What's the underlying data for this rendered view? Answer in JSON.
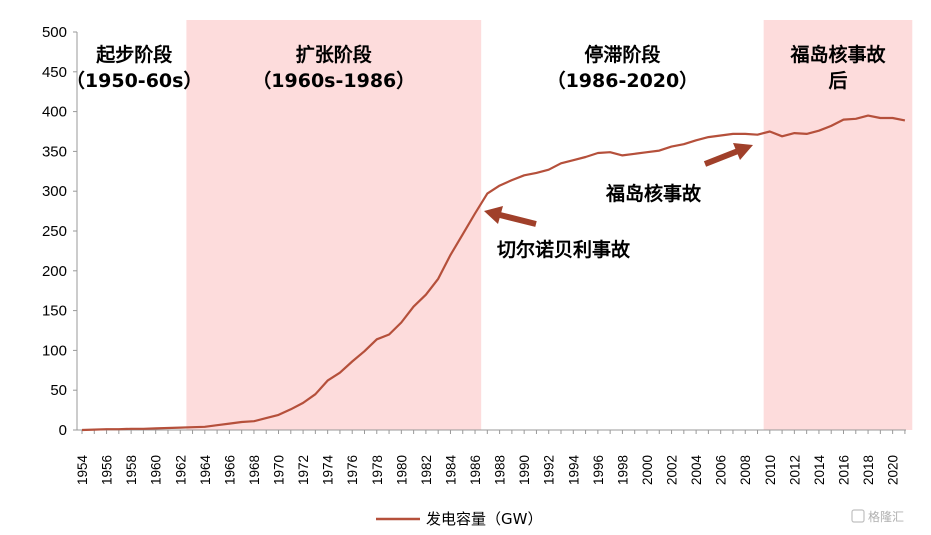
{
  "chart_data": {
    "type": "line",
    "ylim": [
      0,
      500
    ],
    "yticks": [
      0,
      50,
      100,
      150,
      200,
      250,
      300,
      350,
      400,
      450,
      500
    ],
    "xlim": [
      1954,
      2021
    ],
    "xticks": [
      "1954",
      "1956",
      "1958",
      "1960",
      "1962",
      "1964",
      "1966",
      "1968",
      "1970",
      "1972",
      "1974",
      "1976",
      "1978",
      "1980",
      "1982",
      "1984",
      "1986",
      "1988",
      "1990",
      "1992",
      "1994",
      "1996",
      "1998",
      "2000",
      "2002",
      "2004",
      "2006",
      "2008",
      "2010",
      "2012",
      "2014",
      "2016",
      "2018",
      "2020"
    ],
    "grid": false,
    "legend_position": "bottom",
    "line_color": "#b5503b",
    "shade_color": "#fddcdc",
    "arrow_color": "#a0402a",
    "series": [
      {
        "name": "发电容量（GW）",
        "x": [
          1954,
          1955,
          1956,
          1957,
          1958,
          1959,
          1960,
          1961,
          1962,
          1963,
          1964,
          1965,
          1966,
          1967,
          1968,
          1969,
          1970,
          1971,
          1972,
          1973,
          1974,
          1975,
          1976,
          1977,
          1978,
          1979,
          1980,
          1981,
          1982,
          1983,
          1984,
          1985,
          1986,
          1987,
          1988,
          1989,
          1990,
          1991,
          1992,
          1993,
          1994,
          1995,
          1996,
          1997,
          1998,
          1999,
          2000,
          2001,
          2002,
          2003,
          2004,
          2005,
          2006,
          2007,
          2008,
          2009,
          2010,
          2011,
          2012,
          2013,
          2014,
          2015,
          2016,
          2017,
          2018,
          2019,
          2020,
          2021
        ],
        "values": [
          0,
          0.5,
          1,
          1,
          1.5,
          1.5,
          2,
          2.5,
          3,
          3.5,
          4,
          6,
          8,
          10,
          11,
          15,
          19,
          26,
          34,
          45,
          62,
          72,
          86,
          99,
          114,
          120,
          135,
          155,
          170,
          190,
          220,
          246,
          272,
          297,
          307,
          314,
          320,
          323,
          327,
          335,
          339,
          343,
          348,
          349,
          345,
          347,
          349,
          351,
          356,
          359,
          364,
          368,
          370,
          372,
          372,
          371,
          375,
          369,
          373,
          372,
          376,
          382,
          390,
          391,
          395,
          392,
          392,
          389
        ]
      }
    ],
    "phases": [
      {
        "label_lines": [
          "起步阶段",
          "（1950-60s）"
        ],
        "from": 1954,
        "to": 1962.5,
        "shaded": false
      },
      {
        "label_lines": [
          "扩张阶段",
          "（1960s-1986）"
        ],
        "from": 1962.5,
        "to": 1986.5,
        "shaded": true
      },
      {
        "label_lines": [
          "停滞阶段",
          "（1986-2020）"
        ],
        "from": 1986.5,
        "to": 2009.5,
        "shaded": false
      },
      {
        "label_lines": [
          "福岛核事故",
          "后"
        ],
        "from": 2009.5,
        "to": 2021.6,
        "shaded": true
      }
    ],
    "annotations": [
      {
        "text": "切尔诺贝利事故",
        "x": 1986,
        "y": 275
      },
      {
        "text": "福岛核事故",
        "x": 2011,
        "y": 357
      }
    ]
  },
  "watermark": "格隆汇"
}
